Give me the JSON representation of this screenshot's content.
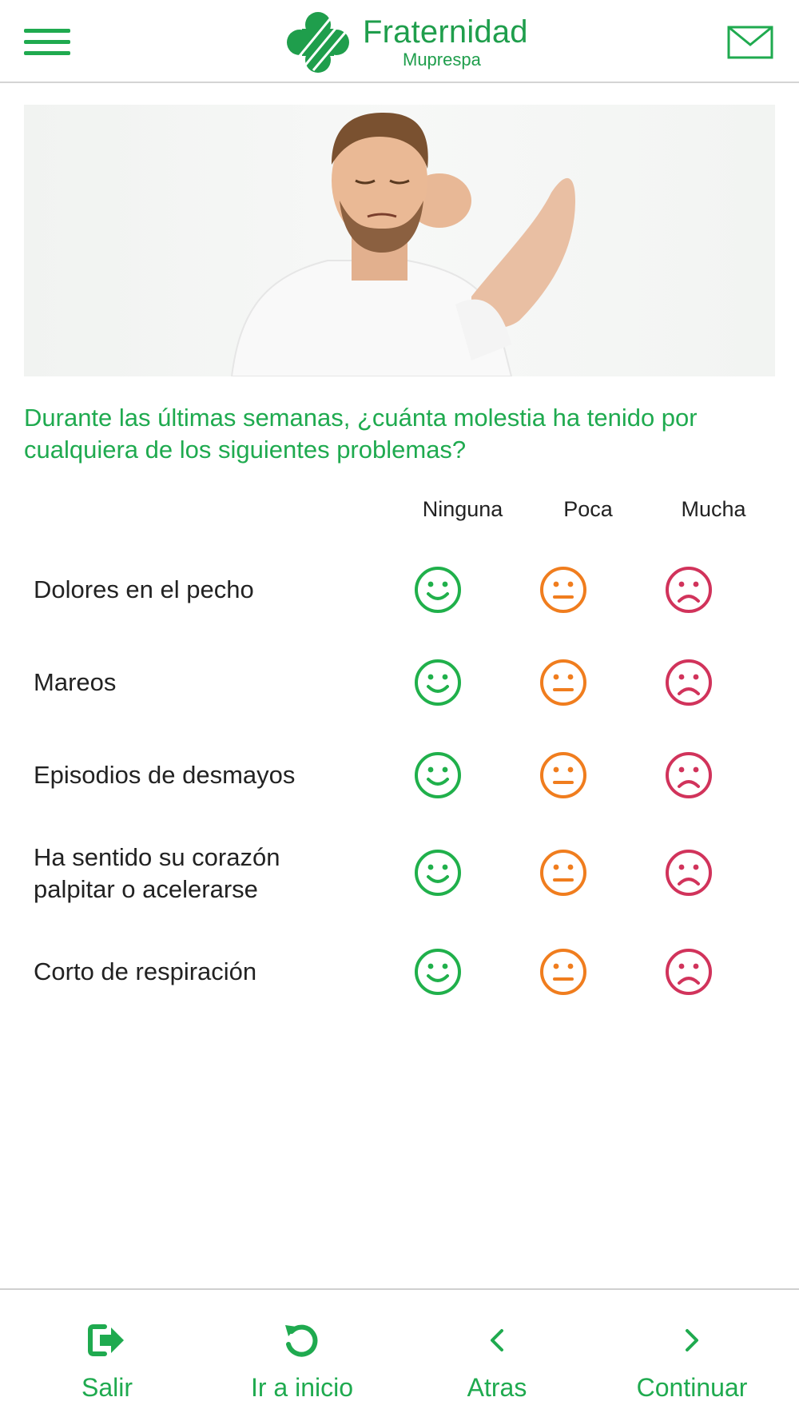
{
  "header": {
    "brand_name": "Fraternidad",
    "brand_sub": "Muprespa"
  },
  "question": "Durante las últimas semanas, ¿cuánta molestia ha tenido por cualquiera de los siguientes problemas?",
  "columns": [
    "Ninguna",
    "Poca",
    "Mucha"
  ],
  "rows": [
    "Dolores en el pecho",
    "Mareos",
    "Episodios de desmayos",
    "Ha sentido su corazón palpitar o acelerarse",
    "Corto de respiración"
  ],
  "colors": {
    "brand_green": "#1faa4f",
    "happy_green": "#20b04b",
    "neutral_orange": "#f07d1e",
    "sad_red": "#d1335b"
  },
  "footer": {
    "exit_label": "Salir",
    "home_label": "Ir a inicio",
    "back_label": "Atras",
    "continue_label": "Continuar"
  }
}
